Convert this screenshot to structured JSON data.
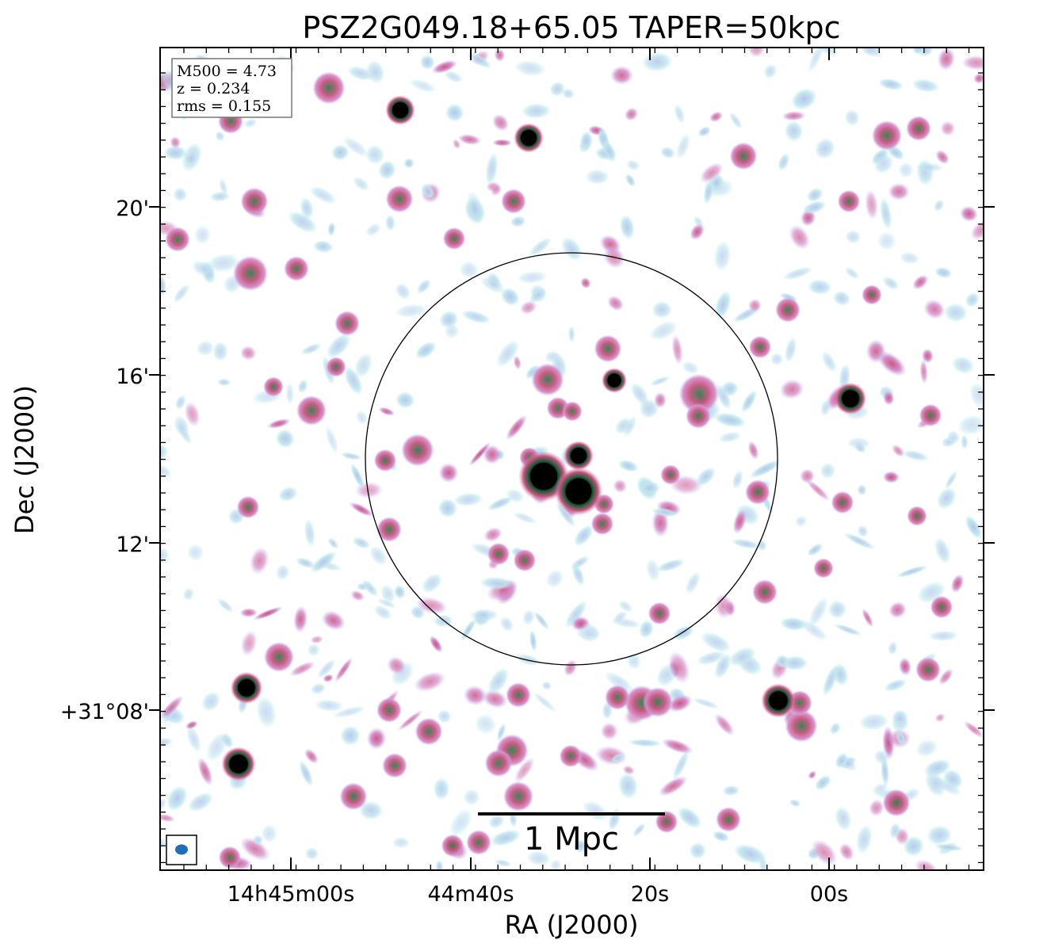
{
  "title": "PSZ2G049.18+65.05 TAPER=50kpc",
  "info_box": {
    "m500": "M500 = 4.73",
    "z": "z = 0.234",
    "rms": "rms = 0.155"
  },
  "x_axis": {
    "label": "RA (J2000)",
    "ticks": [
      "14h45m00s",
      "44m40s",
      "20s",
      "00s"
    ]
  },
  "y_axis": {
    "label": "Dec (J2000)",
    "ticks": [
      "20'",
      "16'",
      "12'",
      "+31°08'"
    ]
  },
  "scale_bar": {
    "label": "1 Mpc"
  },
  "colors": {
    "faint": "#bfe6ec",
    "low": "#b9c2f0",
    "mid": "#d98bc8",
    "high": "#c2557a",
    "strong": "#2e7d4f",
    "core": "#000000",
    "beam": "#1f6fb4"
  },
  "image_description_elements": {
    "circle": "r500 aperture",
    "beam_icon": "restoring beam"
  }
}
